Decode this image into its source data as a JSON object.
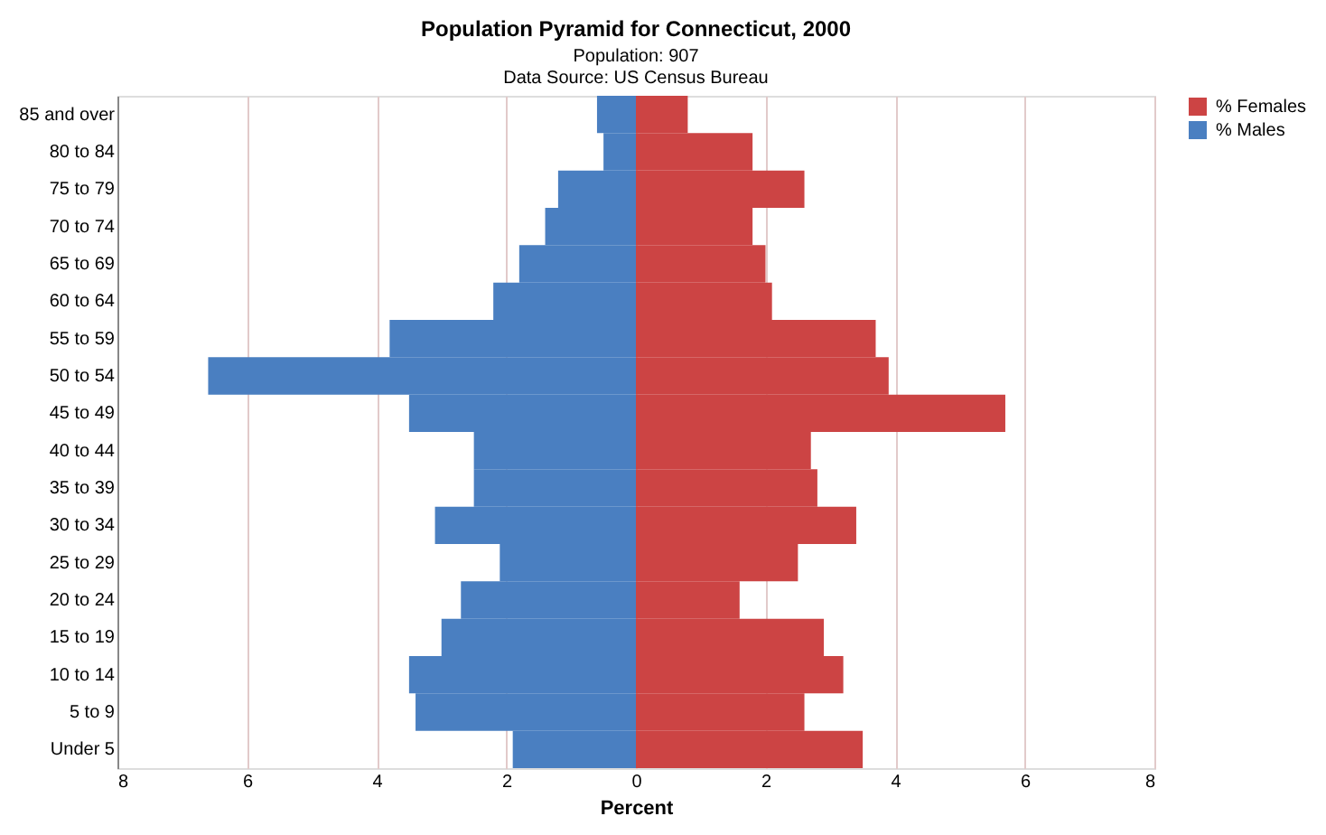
{
  "chart_data": {
    "type": "bar",
    "orientation": "horizontal",
    "title": "Population Pyramid for Connecticut, 2000",
    "subtitle": "Population: 907",
    "annotations": [
      "Data Source: US Census Bureau"
    ],
    "xlabel": "Percent",
    "categories": [
      "85 and over",
      "80 to 84",
      "75 to 79",
      "70 to 74",
      "65 to 69",
      "60 to 64",
      "55 to 59",
      "50 to 54",
      "45 to 49",
      "40 to 44",
      "35 to 39",
      "30 to 34",
      "25 to 29",
      "20 to 24",
      "15 to 19",
      "10 to 14",
      "5 to 9",
      "Under 5"
    ],
    "series": [
      {
        "name": "% Females",
        "color": "#cc4444",
        "values": [
          0.8,
          1.8,
          2.6,
          1.8,
          2.0,
          2.1,
          3.7,
          3.9,
          5.7,
          2.7,
          2.8,
          3.4,
          2.5,
          1.6,
          2.9,
          3.2,
          2.6,
          3.5
        ]
      },
      {
        "name": "% Males",
        "color": "#4a7fc1",
        "values": [
          -0.6,
          -0.5,
          -1.2,
          -1.4,
          -1.8,
          -2.2,
          -3.8,
          -6.6,
          -3.5,
          -2.5,
          -2.5,
          -3.1,
          -2.1,
          -2.7,
          -3.0,
          -3.5,
          -3.4,
          -1.9
        ]
      }
    ],
    "xlim": [
      -8,
      8
    ],
    "xticks": [
      {
        "value": -8,
        "label": "8"
      },
      {
        "value": -6,
        "label": "6"
      },
      {
        "value": -4,
        "label": "4"
      },
      {
        "value": -2,
        "label": "2"
      },
      0,
      2,
      4,
      6,
      8
    ],
    "grid": "x",
    "legend": "right",
    "stacked": true
  }
}
